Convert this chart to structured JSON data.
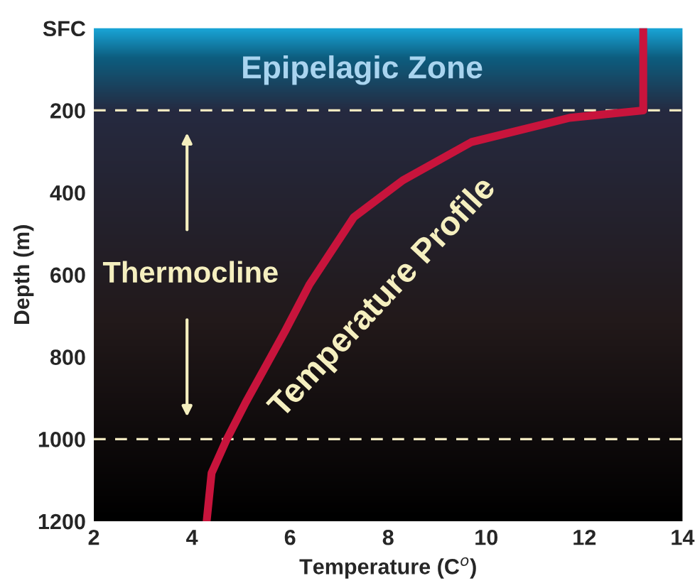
{
  "chart_data": {
    "type": "line",
    "xlabel": "Temperature (C$^{o}$)",
    "ylabel": "Depth (m)",
    "series": [
      {
        "name": "Temperature Profile",
        "color": "#c8143c",
        "x": [
          13.2,
          13.2,
          11.7,
          9.7,
          8.3,
          7.3,
          6.4,
          5.9,
          5.1,
          4.7,
          4.4,
          4.3
        ],
        "values": [
          0,
          200,
          218,
          277,
          370,
          460,
          623,
          737,
          910,
          1003,
          1083,
          1200
        ]
      }
    ],
    "xlim": [
      2,
      14
    ],
    "xticks": [
      2,
      4,
      6,
      8,
      10,
      12,
      14
    ],
    "ylim": [
      1200,
      0
    ],
    "yticks": [
      {
        "value": 0,
        "label": "SFC"
      },
      200,
      400,
      600,
      800,
      1000,
      1200
    ],
    "ref_lines": [
      {
        "axis": "y",
        "value": 200,
        "color": "#f0e8c0",
        "line_style": "dashed"
      },
      {
        "axis": "y",
        "value": 1000,
        "color": "#f0e8c0",
        "line_style": "dashed"
      }
    ],
    "annotations": [
      "Epipelagic Zone",
      "Thermocline"
    ],
    "grid": false,
    "marker": "none",
    "line_style": "solid",
    "legend": false
  }
}
